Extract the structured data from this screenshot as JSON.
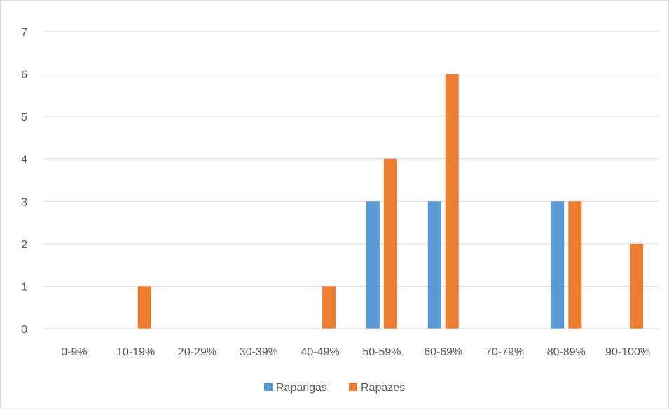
{
  "chart_data": {
    "type": "bar",
    "categories": [
      "0-9%",
      "10-19%",
      "20-29%",
      "30-39%",
      "40-49%",
      "50-59%",
      "60-69%",
      "70-79%",
      "80-89%",
      "90-100%"
    ],
    "series": [
      {
        "name": "Raparigas",
        "color": "#5b9bd5",
        "values": [
          0,
          0,
          0,
          0,
          0,
          3,
          3,
          0,
          3,
          0
        ]
      },
      {
        "name": "Rapazes",
        "color": "#ed7d31",
        "values": [
          0,
          1,
          0,
          0,
          1,
          4,
          6,
          0,
          3,
          2
        ]
      }
    ],
    "ylim": [
      0,
      7
    ],
    "yticks": [
      "0",
      "1",
      "2",
      "3",
      "4",
      "5",
      "6",
      "7"
    ],
    "grid": true,
    "legend_position": "bottom",
    "title": "",
    "xlabel": "",
    "ylabel": ""
  }
}
